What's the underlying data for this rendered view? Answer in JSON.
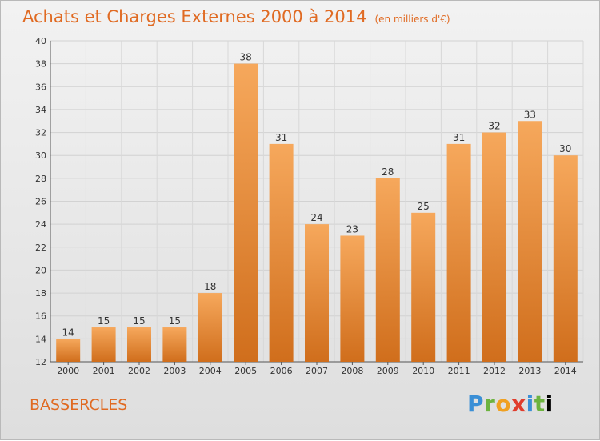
{
  "header": {
    "title": "Achats et Charges Externes 2000 à 2014",
    "unit": "(en milliers d'€)"
  },
  "footer": {
    "commune": "BASSERCLES",
    "logo_text": "Proxiti"
  },
  "colors": {
    "title": "#e06a22",
    "bar_top": "#f6a85c",
    "bar_bottom": "#d06e1c",
    "label": "#333333"
  },
  "chart_data": {
    "type": "bar",
    "title": "Achats et Charges Externes 2000 à 2014",
    "subtitle": "(en milliers d'€)",
    "categories": [
      "2000",
      "2001",
      "2002",
      "2003",
      "2004",
      "2005",
      "2006",
      "2007",
      "2008",
      "2009",
      "2010",
      "2011",
      "2012",
      "2013",
      "2014"
    ],
    "values": [
      14,
      15,
      15,
      15,
      18,
      38,
      31,
      24,
      23,
      28,
      25,
      31,
      32,
      33,
      30
    ],
    "ylim": [
      12,
      40
    ],
    "yticks": [
      12,
      14,
      16,
      18,
      20,
      22,
      24,
      26,
      28,
      30,
      32,
      34,
      36,
      38,
      40
    ],
    "grid": true,
    "data_labels": true
  }
}
